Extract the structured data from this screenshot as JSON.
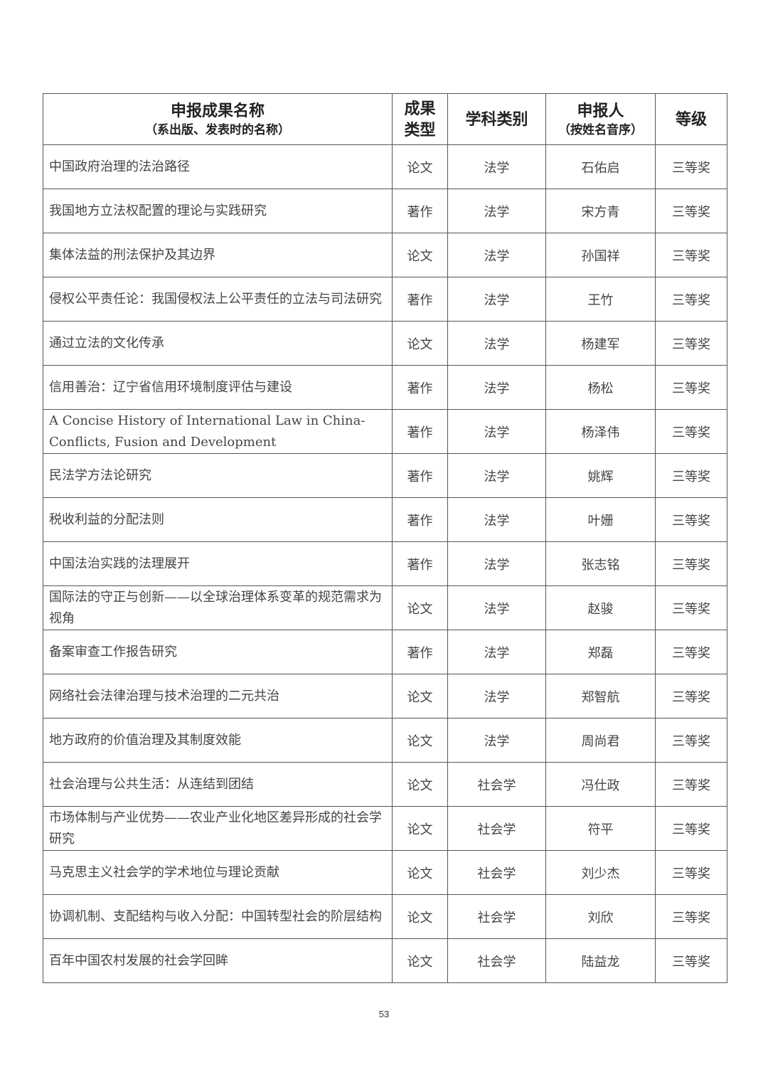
{
  "header": {
    "title_main": "申报成果名称",
    "title_sub": "（系出版、发表时的名称）",
    "type": "成果类型",
    "discipline": "学科类别",
    "applicant_main": "申报人",
    "applicant_sub": "（按姓名音序）",
    "level": "等级"
  },
  "rows": [
    {
      "name": "中国政府治理的法治路径",
      "type": "论文",
      "discipline": "法学",
      "applicant": "石佑启",
      "level": "三等奖"
    },
    {
      "name": "我国地方立法权配置的理论与实践研究",
      "type": "著作",
      "discipline": "法学",
      "applicant": "宋方青",
      "level": "三等奖"
    },
    {
      "name": "集体法益的刑法保护及其边界",
      "type": "论文",
      "discipline": "法学",
      "applicant": "孙国祥",
      "level": "三等奖"
    },
    {
      "name": "侵权公平责任论：我国侵权法上公平责任的立法与司法研究",
      "type": "著作",
      "discipline": "法学",
      "applicant": "王竹",
      "level": "三等奖"
    },
    {
      "name": "通过立法的文化传承",
      "type": "论文",
      "discipline": "法学",
      "applicant": "杨建军",
      "level": "三等奖"
    },
    {
      "name": "信用善治：辽宁省信用环境制度评估与建设",
      "type": "著作",
      "discipline": "法学",
      "applicant": "杨松",
      "level": "三等奖"
    },
    {
      "name": "A Concise History of International Law in China-Conflicts, Fusion and Development",
      "type": "著作",
      "discipline": "法学",
      "applicant": "杨泽伟",
      "level": "三等奖"
    },
    {
      "name": "民法学方法论研究",
      "type": "著作",
      "discipline": "法学",
      "applicant": "姚辉",
      "level": "三等奖"
    },
    {
      "name": "税收利益的分配法则",
      "type": "著作",
      "discipline": "法学",
      "applicant": "叶姗",
      "level": "三等奖"
    },
    {
      "name": "中国法治实践的法理展开",
      "type": "著作",
      "discipline": "法学",
      "applicant": "张志铭",
      "level": "三等奖"
    },
    {
      "name": "国际法的守正与创新——以全球治理体系变革的规范需求为视角",
      "type": "论文",
      "discipline": "法学",
      "applicant": "赵骏",
      "level": "三等奖"
    },
    {
      "name": "备案审查工作报告研究",
      "type": "著作",
      "discipline": "法学",
      "applicant": "郑磊",
      "level": "三等奖"
    },
    {
      "name": "网络社会法律治理与技术治理的二元共治",
      "type": "论文",
      "discipline": "法学",
      "applicant": "郑智航",
      "level": "三等奖"
    },
    {
      "name": "地方政府的价值治理及其制度效能",
      "type": "论文",
      "discipline": "法学",
      "applicant": "周尚君",
      "level": "三等奖"
    },
    {
      "name": "社会治理与公共生活：从连结到团结",
      "type": "论文",
      "discipline": "社会学",
      "applicant": "冯仕政",
      "level": "三等奖"
    },
    {
      "name": "市场体制与产业优势——农业产业化地区差异形成的社会学研究",
      "type": "论文",
      "discipline": "社会学",
      "applicant": "符平",
      "level": "三等奖"
    },
    {
      "name": "马克思主义社会学的学术地位与理论贡献",
      "type": "论文",
      "discipline": "社会学",
      "applicant": "刘少杰",
      "level": "三等奖"
    },
    {
      "name": "协调机制、支配结构与收入分配：中国转型社会的阶层结构",
      "type": "论文",
      "discipline": "社会学",
      "applicant": "刘欣",
      "level": "三等奖"
    },
    {
      "name": "百年中国农村发展的社会学回眸",
      "type": "论文",
      "discipline": "社会学",
      "applicant": "陆益龙",
      "level": "三等奖"
    }
  ],
  "page_number": "53"
}
